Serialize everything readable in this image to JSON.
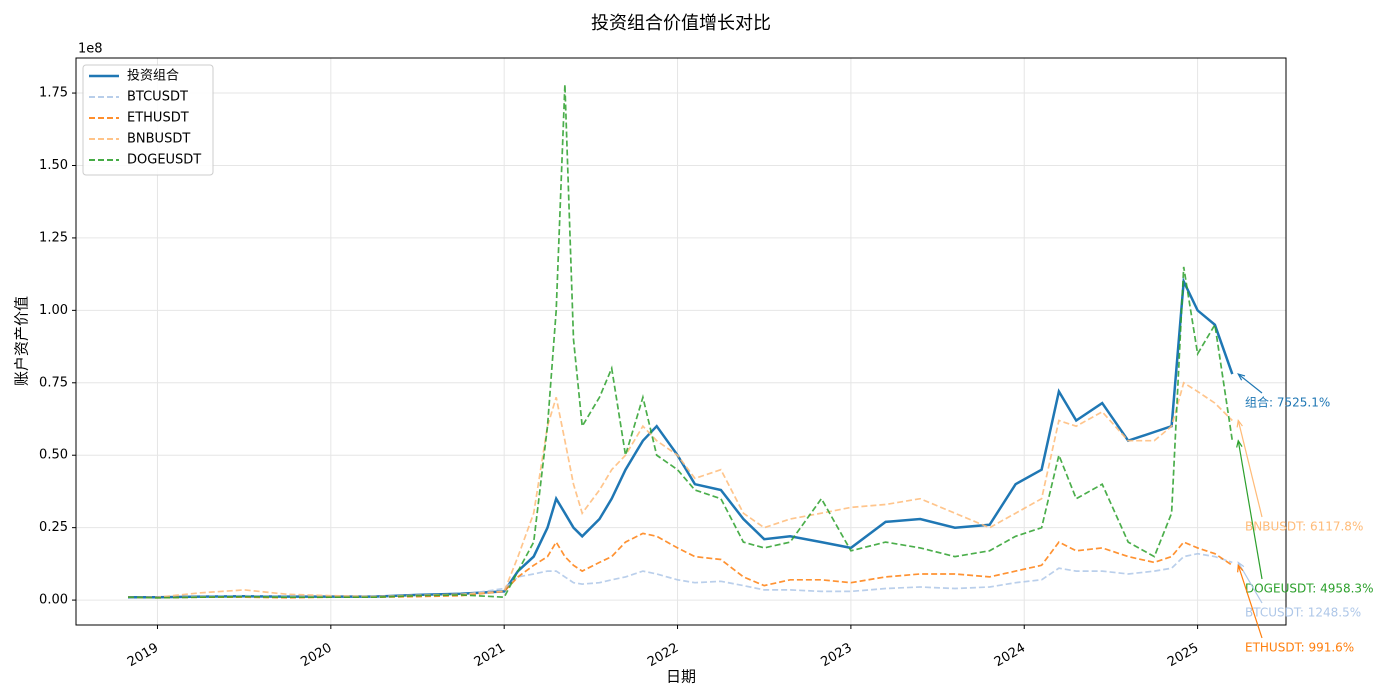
{
  "chart_data": {
    "type": "line",
    "title": "投资组合价值增长对比",
    "xlabel": "日期",
    "ylabel": "账户资产价值",
    "y_offset_label": "1e8",
    "grid": true,
    "legend": "upper left",
    "xlim": [
      2018.53,
      2025.51
    ],
    "ylim": [
      -0.086,
      1.871
    ],
    "xticks": [
      2019,
      2020,
      2021,
      2022,
      2023,
      2024,
      2025
    ],
    "yticks": [
      {
        "value": 0,
        "label": "0.00"
      },
      {
        "value": 0.25,
        "label": "0.25"
      },
      {
        "value": 0.5,
        "label": "0.50"
      },
      {
        "value": 0.75,
        "label": "0.75"
      },
      {
        "value": 1.0,
        "label": "1.00"
      },
      {
        "value": 1.25,
        "label": "1.25"
      },
      {
        "value": 1.5,
        "label": "1.50"
      },
      {
        "value": 1.75,
        "label": "1.75"
      }
    ],
    "x": [
      2018.83,
      2019.0,
      2019.25,
      2019.5,
      2019.75,
      2020.0,
      2020.25,
      2020.5,
      2020.75,
      2021.0,
      2021.08,
      2021.17,
      2021.25,
      2021.3,
      2021.35,
      2021.4,
      2021.45,
      2021.55,
      2021.62,
      2021.7,
      2021.8,
      2021.88,
      2022.0,
      2022.1,
      2022.25,
      2022.38,
      2022.5,
      2022.65,
      2022.83,
      2023.0,
      2023.2,
      2023.4,
      2023.6,
      2023.8,
      2023.95,
      2024.1,
      2024.2,
      2024.3,
      2024.45,
      2024.6,
      2024.75,
      2024.85,
      2024.92,
      2025.0,
      2025.1,
      2025.2
    ],
    "series": [
      {
        "name": "投资组合",
        "color": "#1f77b4",
        "dashed": false,
        "values": [
          0.01,
          0.01,
          0.012,
          0.013,
          0.012,
          0.012,
          0.012,
          0.018,
          0.022,
          0.03,
          0.1,
          0.15,
          0.25,
          0.35,
          0.3,
          0.25,
          0.22,
          0.28,
          0.35,
          0.45,
          0.55,
          0.6,
          0.5,
          0.4,
          0.38,
          0.28,
          0.21,
          0.22,
          0.2,
          0.18,
          0.27,
          0.28,
          0.25,
          0.26,
          0.4,
          0.45,
          0.72,
          0.62,
          0.68,
          0.55,
          0.58,
          0.6,
          1.1,
          1.0,
          0.95,
          0.78
        ]
      },
      {
        "name": "BTCUSDT",
        "color": "#aec7e8",
        "dashed": true,
        "values": [
          0.01,
          0.008,
          0.012,
          0.015,
          0.012,
          0.012,
          0.01,
          0.015,
          0.018,
          0.04,
          0.08,
          0.09,
          0.1,
          0.1,
          0.08,
          0.06,
          0.055,
          0.06,
          0.07,
          0.08,
          0.1,
          0.09,
          0.07,
          0.06,
          0.065,
          0.05,
          0.035,
          0.035,
          0.03,
          0.03,
          0.04,
          0.045,
          0.04,
          0.045,
          0.06,
          0.07,
          0.11,
          0.1,
          0.1,
          0.09,
          0.1,
          0.11,
          0.15,
          0.16,
          0.15,
          0.13
        ]
      },
      {
        "name": "ETHUSDT",
        "color": "#ff7f0e",
        "dashed": true,
        "values": [
          0.01,
          0.008,
          0.01,
          0.01,
          0.008,
          0.01,
          0.01,
          0.012,
          0.015,
          0.03,
          0.08,
          0.12,
          0.15,
          0.2,
          0.15,
          0.12,
          0.1,
          0.13,
          0.15,
          0.2,
          0.23,
          0.22,
          0.18,
          0.15,
          0.14,
          0.08,
          0.05,
          0.07,
          0.07,
          0.06,
          0.08,
          0.09,
          0.09,
          0.08,
          0.1,
          0.12,
          0.2,
          0.17,
          0.18,
          0.15,
          0.13,
          0.15,
          0.2,
          0.18,
          0.16,
          0.12
        ]
      },
      {
        "name": "BNBUSDT",
        "color": "#ffbb78",
        "dashed": true,
        "values": [
          0.01,
          0.01,
          0.025,
          0.035,
          0.02,
          0.015,
          0.012,
          0.017,
          0.02,
          0.03,
          0.15,
          0.3,
          0.6,
          0.7,
          0.55,
          0.4,
          0.3,
          0.38,
          0.45,
          0.5,
          0.6,
          0.55,
          0.5,
          0.42,
          0.45,
          0.3,
          0.25,
          0.28,
          0.3,
          0.32,
          0.33,
          0.35,
          0.3,
          0.25,
          0.3,
          0.35,
          0.62,
          0.6,
          0.65,
          0.55,
          0.55,
          0.6,
          0.75,
          0.72,
          0.68,
          0.62
        ]
      },
      {
        "name": "DOGEUSDT",
        "color": "#2ca02c",
        "dashed": true,
        "values": [
          0.01,
          0.008,
          0.01,
          0.012,
          0.01,
          0.01,
          0.01,
          0.015,
          0.018,
          0.01,
          0.1,
          0.2,
          0.6,
          1.0,
          1.78,
          0.9,
          0.6,
          0.7,
          0.8,
          0.5,
          0.7,
          0.5,
          0.45,
          0.38,
          0.35,
          0.2,
          0.18,
          0.2,
          0.35,
          0.17,
          0.2,
          0.18,
          0.15,
          0.17,
          0.22,
          0.25,
          0.5,
          0.35,
          0.4,
          0.2,
          0.15,
          0.3,
          1.15,
          0.85,
          0.95,
          0.55
        ]
      }
    ],
    "annotations": [
      {
        "text": "组合: 7525.1%",
        "color": "#1f77b4"
      },
      {
        "text": "BNBUSDT: 6117.8%",
        "color": "#ffbb78"
      },
      {
        "text": "DOGEUSDT: 4958.3%",
        "color": "#2ca02c"
      },
      {
        "text": "BTCUSDT: 1248.5%",
        "color": "#aec7e8"
      },
      {
        "text": "ETHUSDT: 991.6%",
        "color": "#ff7f0e"
      }
    ]
  }
}
